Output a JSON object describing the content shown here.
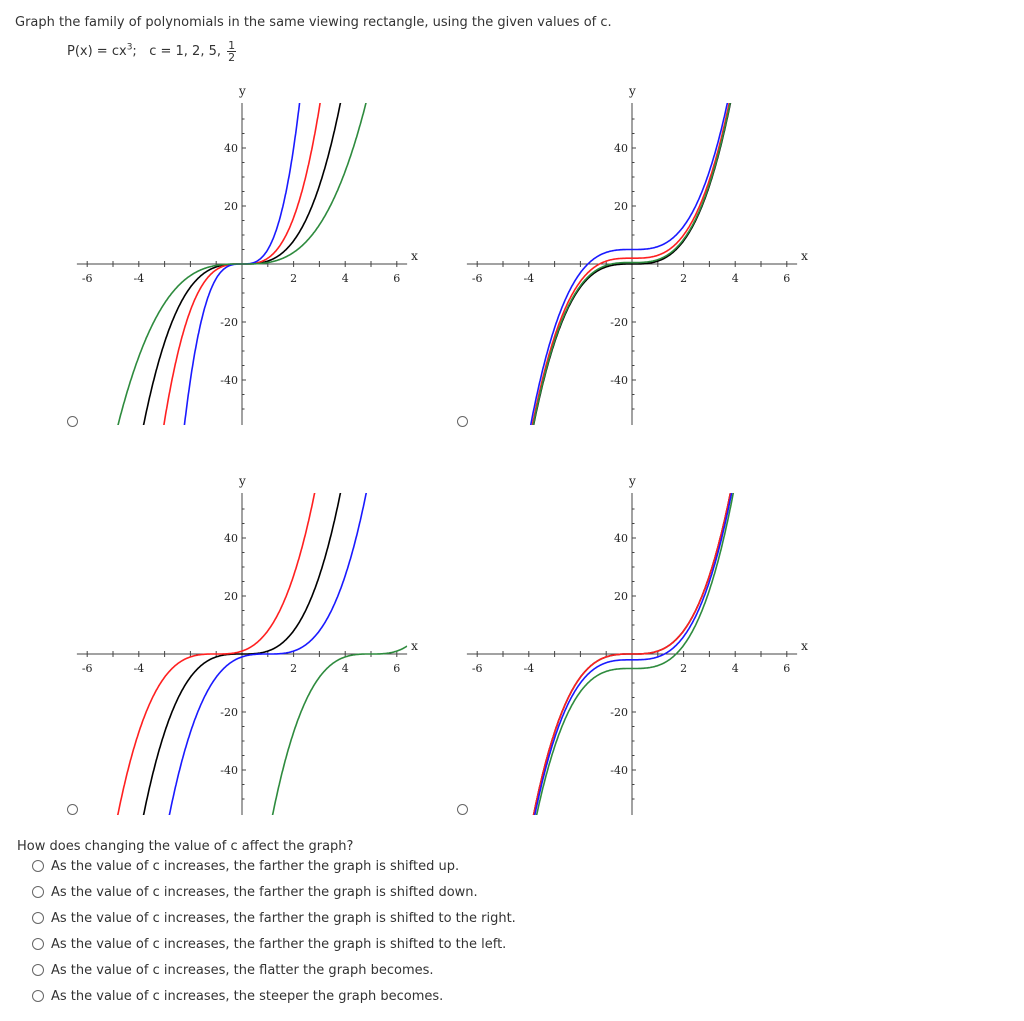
{
  "question": {
    "text": "Graph the family of polynomials in the same viewing rectangle, using the given values of c.",
    "formula": "P(x) = cx",
    "formula_exp": "3",
    "formula_sep": ";",
    "c_values_text": "c = 1, 2, 5,",
    "frac_num": "1",
    "frac_den": "2"
  },
  "colors": {
    "black": "#000000",
    "red": "#ff2020",
    "blue": "#1a1aff",
    "green": "#2e8b3e"
  },
  "chart_data": [
    {
      "type": "line",
      "xlabel": "x",
      "ylabel": "y",
      "xlim": [
        -6.4,
        6.4
      ],
      "ylim": [
        -52,
        52
      ],
      "xticks": [
        "-6",
        "-4",
        "2",
        "4",
        "6"
      ],
      "yticks": [
        "40",
        "20",
        "-20",
        "-40"
      ],
      "series": [
        {
          "formula": "x^3",
          "color": "#000000"
        },
        {
          "formula": "2x^3",
          "color": "#ff2020"
        },
        {
          "formula": "5x^3",
          "color": "#1a1aff"
        },
        {
          "formula": "0.5x^3",
          "color": "#2e8b3e"
        }
      ]
    },
    {
      "type": "line",
      "xlabel": "x",
      "ylabel": "y",
      "xlim": [
        -6.4,
        6.4
      ],
      "ylim": [
        -52,
        52
      ],
      "xticks": [
        "-6",
        "-4",
        "2",
        "4",
        "6"
      ],
      "yticks": [
        "40",
        "20",
        "-20",
        "-40"
      ],
      "series": [
        {
          "formula": "x^3",
          "color": "#000000"
        },
        {
          "formula": "x^3+2",
          "color": "#ff2020"
        },
        {
          "formula": "x^3+5",
          "color": "#1a1aff"
        },
        {
          "formula": "x^3+0.5",
          "color": "#2e8b3e"
        }
      ]
    },
    {
      "type": "line",
      "xlabel": "x",
      "ylabel": "y",
      "xlim": [
        -6.4,
        6.4
      ],
      "ylim": [
        -52,
        52
      ],
      "xticks": [
        "-6",
        "-4",
        "2",
        "4",
        "6"
      ],
      "yticks": [
        "40",
        "20",
        "-20",
        "-40"
      ],
      "series": [
        {
          "formula": "x^3",
          "color": "#000000"
        },
        {
          "formula": "(x+1)^3",
          "color": "#ff2020"
        },
        {
          "formula": "(x-1)^3",
          "color": "#1a1aff"
        },
        {
          "formula": "(x-5)^3",
          "color": "#2e8b3e"
        }
      ]
    },
    {
      "type": "line",
      "xlabel": "x",
      "ylabel": "y",
      "xlim": [
        -6.4,
        6.4
      ],
      "ylim": [
        -52,
        52
      ],
      "xticks": [
        "-6",
        "-4",
        "2",
        "4",
        "6"
      ],
      "yticks": [
        "40",
        "20",
        "-20",
        "-40"
      ],
      "series": [
        {
          "formula": "x^3",
          "color": "#000000"
        },
        {
          "formula": "x^3",
          "color": "#ff2020"
        },
        {
          "formula": "x^3-2",
          "color": "#1a1aff"
        },
        {
          "formula": "x^3-5",
          "color": "#2e8b3e"
        }
      ]
    }
  ],
  "sub_question": "How does changing the value of c affect the graph?",
  "options": [
    "As the value of c increases, the farther the graph is shifted up.",
    "As the value of c increases, the farther the graph is shifted down.",
    "As the value of c increases, the farther the graph is shifted to the right.",
    "As the value of c increases, the farther the graph is shifted to the left.",
    "As the value of c increases, the flatter the graph becomes.",
    "As the value of c increases, the steeper the graph becomes."
  ]
}
